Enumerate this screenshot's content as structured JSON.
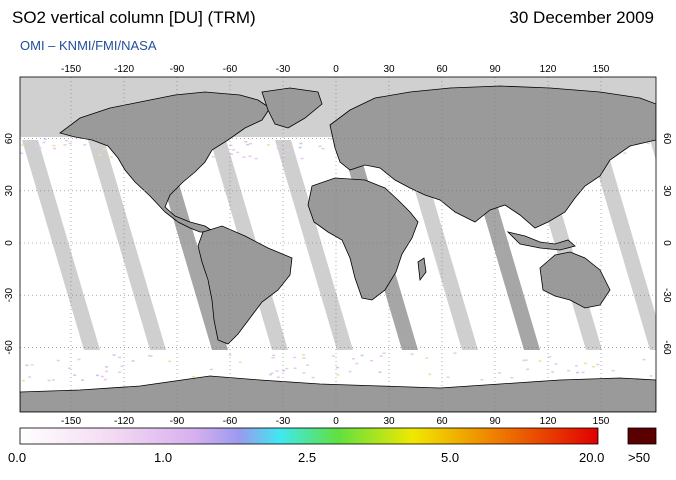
{
  "header": {
    "title": "SO2 vertical column [DU] (TRM)",
    "date": "30 December 2009",
    "source": "OMI  –  KNMI/FMI/NASA"
  },
  "map": {
    "projection": "equirectangular",
    "lon_ticks": [
      "-150",
      "-120",
      "-90",
      "-60",
      "-30",
      "0",
      "30",
      "60",
      "90",
      "120",
      "150"
    ],
    "lat_ticks": [
      "60",
      "30",
      "0",
      "-30",
      "-60"
    ],
    "gridlines": true,
    "no_data_color": "#d0d0d0",
    "land_no_data_color": "#9a9a9a",
    "swath_gap_color": "#cfcfcf"
  },
  "colorbar": {
    "labels": [
      "0.0",
      "1.0",
      "2.5",
      "5.0",
      "20.0"
    ],
    "overflow_label": ">50",
    "overflow_color": "#5a0000",
    "stops": [
      "#ffffff",
      "#f0d0f0",
      "#b0a0f0",
      "#40f0f0",
      "#60e040",
      "#f0f000",
      "#f08000",
      "#e00000"
    ]
  }
}
